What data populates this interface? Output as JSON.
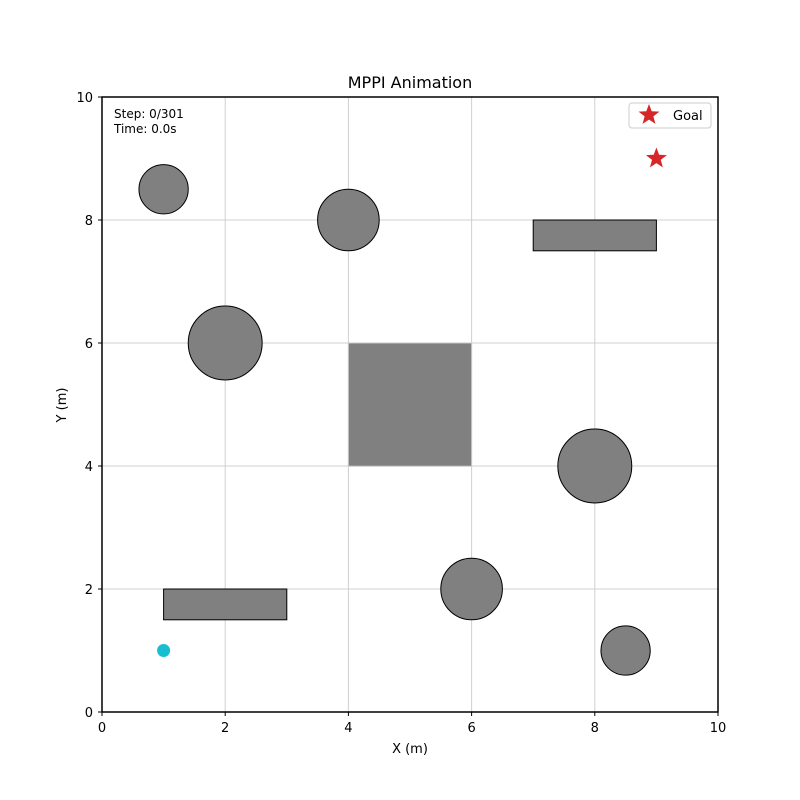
{
  "chart_data": {
    "type": "scatter",
    "title": "MPPI Animation",
    "xlabel": "X (m)",
    "ylabel": "Y (m)",
    "xlim": [
      0,
      10
    ],
    "ylim": [
      0,
      10
    ],
    "grid": true,
    "xticks": [
      "0",
      "2",
      "4",
      "6",
      "8",
      "10"
    ],
    "yticks": [
      "0",
      "2",
      "4",
      "6",
      "8",
      "10"
    ],
    "info": {
      "step": "Step: 0/301",
      "time": "Time: 0.0s"
    },
    "legend": {
      "placement": "top-right",
      "entries": [
        {
          "label": "Goal",
          "marker": "star",
          "color": "#d62728"
        }
      ]
    },
    "goal": {
      "x": 9,
      "y": 9,
      "color": "#d62728"
    },
    "robot": {
      "x": 1,
      "y": 1,
      "color": "#17becf"
    },
    "obstacle_color": "#808080",
    "circle_obstacles": [
      {
        "x": 1,
        "y": 8.5,
        "r": 0.4
      },
      {
        "x": 4,
        "y": 8,
        "r": 0.5
      },
      {
        "x": 2,
        "y": 6,
        "r": 0.6
      },
      {
        "x": 8,
        "y": 4,
        "r": 0.6
      },
      {
        "x": 6,
        "y": 2,
        "r": 0.5
      },
      {
        "x": 8.5,
        "y": 1,
        "r": 0.4
      }
    ],
    "rect_obstacles": [
      {
        "x": 7,
        "y": 7.5,
        "w": 2,
        "h": 0.5,
        "edge": "#000000"
      },
      {
        "x": 4,
        "y": 4,
        "w": 2,
        "h": 2,
        "edge": "#c8c8c8"
      },
      {
        "x": 1,
        "y": 1.5,
        "w": 2,
        "h": 0.5,
        "edge": "#000000"
      }
    ]
  }
}
